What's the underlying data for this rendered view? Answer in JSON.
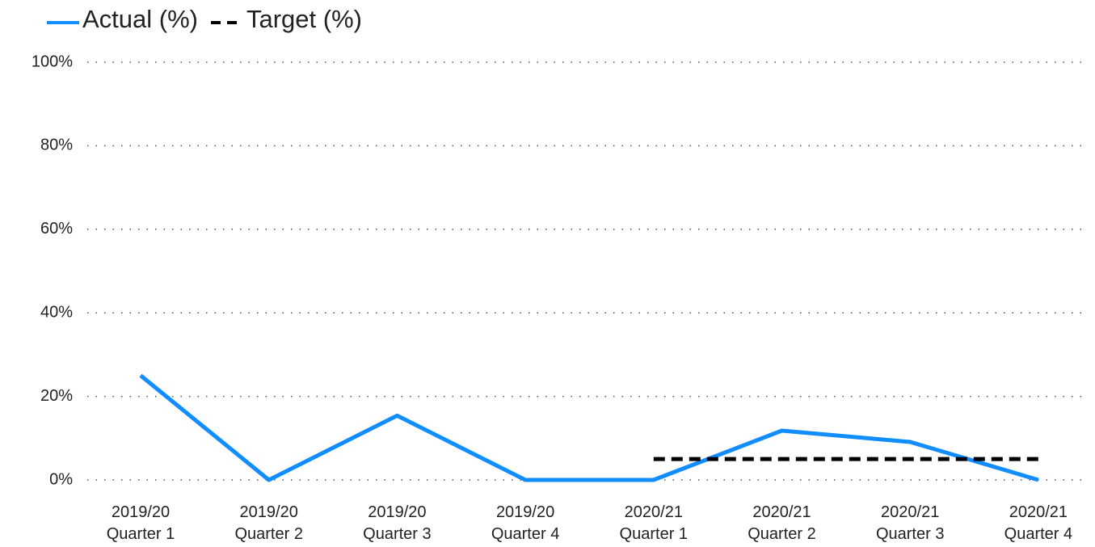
{
  "chart_data": {
    "type": "line",
    "categories": [
      [
        "2019/20",
        "Quarter 1"
      ],
      [
        "2019/20",
        "Quarter 2"
      ],
      [
        "2019/20",
        "Quarter 3"
      ],
      [
        "2019/20",
        "Quarter 4"
      ],
      [
        "2020/21",
        "Quarter 1"
      ],
      [
        "2020/21",
        "Quarter 2"
      ],
      [
        "2020/21",
        "Quarter 3"
      ],
      [
        "2020/21",
        "Quarter 4"
      ]
    ],
    "series": [
      {
        "name": "Actual (%)",
        "color": "#118dff",
        "dash": false,
        "values": [
          25,
          0,
          15.4,
          0,
          0,
          11.8,
          9.1,
          0
        ]
      },
      {
        "name": "Target (%)",
        "color": "#000000",
        "dash": true,
        "values": [
          null,
          null,
          null,
          null,
          5,
          5,
          5,
          5
        ]
      }
    ],
    "ylim": [
      0,
      100
    ],
    "yticks": [
      {
        "value": 0,
        "label": "0%"
      },
      {
        "value": 20,
        "label": "20%"
      },
      {
        "value": 40,
        "label": "40%"
      },
      {
        "value": 60,
        "label": "60%"
      },
      {
        "value": 80,
        "label": "80%"
      },
      {
        "value": 100,
        "label": "100%"
      }
    ],
    "grid": true,
    "legend": "top-left"
  }
}
